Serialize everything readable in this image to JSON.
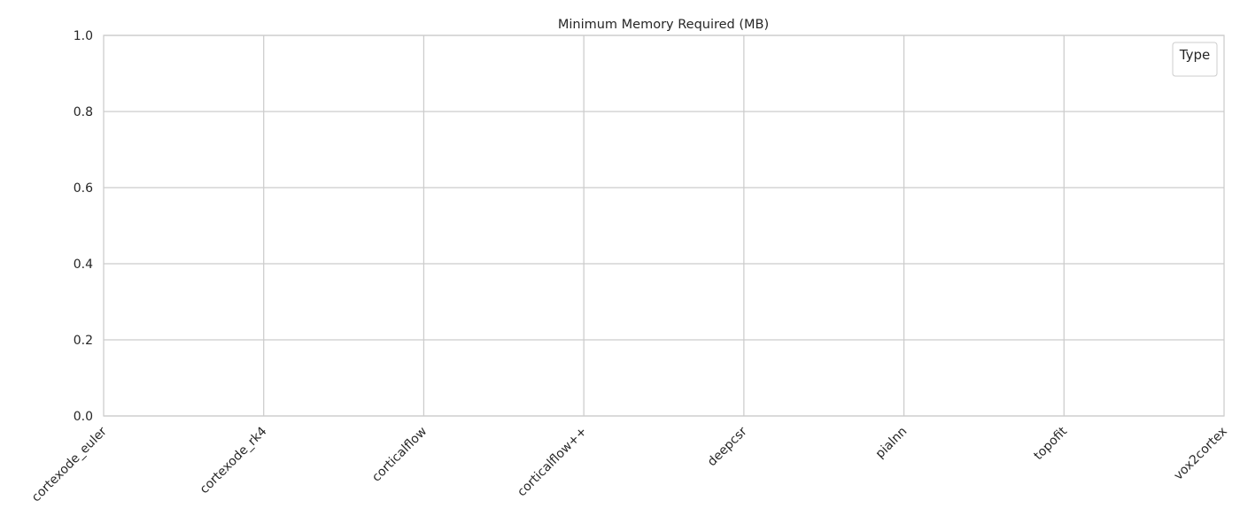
{
  "chart_data": {
    "type": "bar",
    "title": "Minimum Memory Required (MB)",
    "xlabel": "",
    "ylabel": "",
    "categories": [
      "cortexode_euler",
      "cortexode_rk4",
      "corticalflow",
      "corticalflow++",
      "deepcsr",
      "pialnn",
      "topofit",
      "vox2cortex"
    ],
    "series": [],
    "ylim": [
      0,
      1.0
    ],
    "yticks": [
      "0.0",
      "0.2",
      "0.4",
      "0.6",
      "0.8",
      "1.0"
    ],
    "grid": true,
    "legend": {
      "title": "Type",
      "placement": "top-right",
      "entries": []
    }
  },
  "colors": {
    "grid": "#cccccc",
    "spine": "#cccccc",
    "text": "#262626",
    "background": "#ffffff"
  }
}
